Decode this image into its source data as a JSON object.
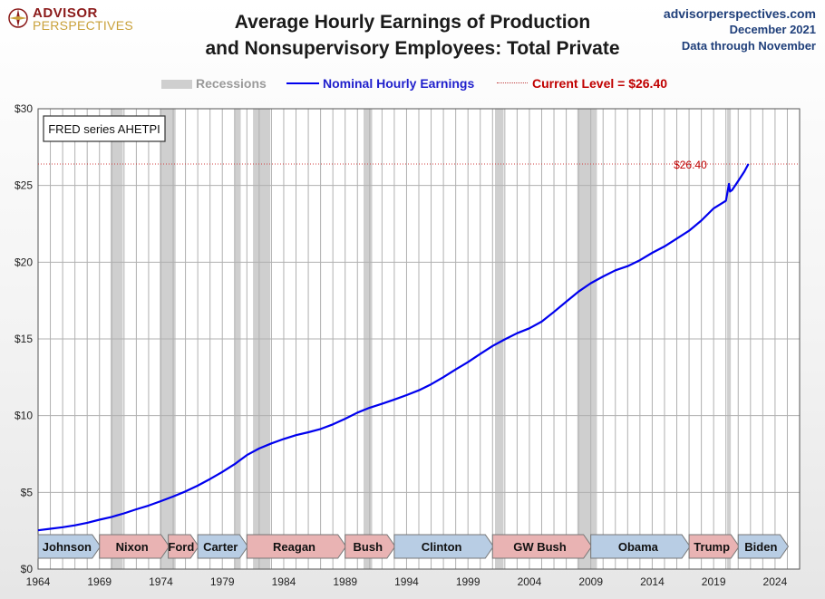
{
  "header": {
    "logo_top": "ADVISOR",
    "logo_bottom": "PERSPECTIVES",
    "title_line1": "Average Hourly Earnings of Production",
    "title_line2": "and Nonsupervisory Employees: Total Private",
    "site": "advisorperspectives.com",
    "date": "December 2021",
    "data_through": "Data through November"
  },
  "legend": {
    "recessions": "Recessions",
    "line": "Nominal Hourly Earnings",
    "current": "Current Level = $26.40"
  },
  "colors": {
    "line": "#0000ee",
    "recession": "#cfcfcf",
    "current": "#c00000",
    "democrat": "#b8cde4",
    "republican": "#e9b3b3"
  },
  "chart_data": {
    "type": "line",
    "title": "Average Hourly Earnings of Production and Nonsupervisory Employees: Total Private",
    "note": "FRED series AHETPI",
    "current_label": "$26.40",
    "xlim": [
      1964,
      2026
    ],
    "ylim": [
      0,
      30
    ],
    "x_ticks": [
      "1964",
      "1969",
      "1974",
      "1979",
      "1984",
      "1989",
      "1994",
      "1999",
      "2004",
      "2009",
      "2014",
      "2019",
      "2024"
    ],
    "y_ticks": [
      "$0",
      "$5",
      "$10",
      "$15",
      "$20",
      "$25",
      "$30"
    ],
    "series": [
      {
        "name": "Nominal Hourly Earnings",
        "x": [
          1964,
          1965,
          1966,
          1967,
          1968,
          1969,
          1970,
          1971,
          1972,
          1973,
          1974,
          1975,
          1976,
          1977,
          1978,
          1979,
          1980,
          1981,
          1982,
          1983,
          1984,
          1985,
          1986,
          1987,
          1988,
          1989,
          1990,
          1991,
          1992,
          1993,
          1994,
          1995,
          1996,
          1997,
          1998,
          1999,
          2000,
          2001,
          2002,
          2003,
          2004,
          2005,
          2006,
          2007,
          2008,
          2009,
          2010,
          2011,
          2012,
          2013,
          2014,
          2015,
          2016,
          2017,
          2018,
          2019,
          2020.0,
          2020.25,
          2020.33,
          2020.5,
          2020.75,
          2021.0,
          2021.5,
          2021.83
        ],
        "y": [
          2.53,
          2.63,
          2.73,
          2.85,
          3.02,
          3.22,
          3.4,
          3.63,
          3.9,
          4.14,
          4.43,
          4.73,
          5.06,
          5.44,
          5.87,
          6.33,
          6.84,
          7.43,
          7.86,
          8.19,
          8.48,
          8.73,
          8.92,
          9.13,
          9.43,
          9.8,
          10.2,
          10.52,
          10.77,
          11.05,
          11.34,
          11.65,
          12.04,
          12.51,
          13.01,
          13.49,
          14.02,
          14.54,
          14.97,
          15.37,
          15.69,
          16.13,
          16.76,
          17.43,
          18.08,
          18.63,
          19.07,
          19.47,
          19.74,
          20.13,
          20.61,
          21.03,
          21.54,
          22.05,
          22.71,
          23.51,
          24.0,
          25.1,
          24.6,
          24.7,
          25.0,
          25.3,
          25.9,
          26.4
        ]
      }
    ],
    "recessions": [
      [
        1969.9,
        1970.9
      ],
      [
        1973.9,
        1975.2
      ],
      [
        1980.0,
        1980.5
      ],
      [
        1981.5,
        1982.9
      ],
      [
        1990.5,
        1991.2
      ],
      [
        2001.2,
        2001.9
      ],
      [
        2007.9,
        2009.5
      ],
      [
        2020.1,
        2020.4
      ]
    ],
    "presidents": [
      {
        "name": "Johnson",
        "party": "D",
        "start": 1964,
        "end": 1969
      },
      {
        "name": "Nixon",
        "party": "R",
        "start": 1969,
        "end": 1974.6
      },
      {
        "name": "Ford",
        "party": "R",
        "start": 1974.6,
        "end": 1977
      },
      {
        "name": "Carter",
        "party": "D",
        "start": 1977,
        "end": 1981
      },
      {
        "name": "Reagan",
        "party": "R",
        "start": 1981,
        "end": 1989
      },
      {
        "name": "Bush",
        "party": "R",
        "start": 1989,
        "end": 1993
      },
      {
        "name": "Clinton",
        "party": "D",
        "start": 1993,
        "end": 2001
      },
      {
        "name": "GW Bush",
        "party": "R",
        "start": 2001,
        "end": 2009
      },
      {
        "name": "Obama",
        "party": "D",
        "start": 2009,
        "end": 2017
      },
      {
        "name": "Trump",
        "party": "R",
        "start": 2017,
        "end": 2021
      },
      {
        "name": "Biden",
        "party": "D",
        "start": 2021,
        "end": 2025
      }
    ]
  }
}
